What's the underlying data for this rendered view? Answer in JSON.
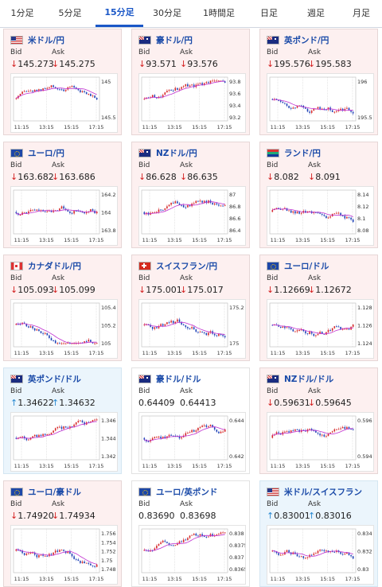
{
  "tabs": [
    "1分足",
    "5分足",
    "15分足",
    "30分足",
    "1時間足",
    "日足",
    "週足",
    "月足"
  ],
  "active_tab": 2,
  "labels": {
    "bid": "Bid",
    "ask": "Ask"
  },
  "time_ticks": [
    "11:15",
    "13:15",
    "15:15",
    "17:15"
  ],
  "cards": [
    {
      "name": "米ドル/円",
      "state": "down",
      "flag": "us",
      "bid": "145.273",
      "ask": "145.275",
      "bid_dir": "down",
      "ask_dir": "down",
      "y_ticks": [
        "145",
        "145.5"
      ]
    },
    {
      "name": "豪ドル/円",
      "state": "down",
      "flag": "au",
      "bid": "93.571",
      "ask": "93.576",
      "bid_dir": "down",
      "ask_dir": "down",
      "y_ticks": [
        "93.8",
        "93.6",
        "93.4",
        "93.2"
      ]
    },
    {
      "name": "英ポンド/円",
      "state": "down",
      "flag": "gb",
      "bid": "195.576",
      "ask": "195.583",
      "bid_dir": "down",
      "ask_dir": "down",
      "y_ticks": [
        "196",
        "195.5"
      ]
    },
    {
      "name": "ユーロ/円",
      "state": "down",
      "flag": "eu",
      "bid": "163.682",
      "ask": "163.686",
      "bid_dir": "down",
      "ask_dir": "down",
      "y_ticks": [
        "164.2",
        "164",
        "163.8"
      ]
    },
    {
      "name": "NZドル/円",
      "state": "down",
      "flag": "nz",
      "bid": "86.628",
      "ask": "86.635",
      "bid_dir": "down",
      "ask_dir": "down",
      "y_ticks": [
        "87",
        "86.8",
        "86.6",
        "86.4"
      ]
    },
    {
      "name": "ランド/円",
      "state": "down",
      "flag": "za",
      "bid": "8.082",
      "ask": "8.091",
      "bid_dir": "down",
      "ask_dir": "down",
      "y_ticks": [
        "8.14",
        "8.12",
        "8.1",
        "8.08"
      ]
    },
    {
      "name": "カナダドル/円",
      "state": "down",
      "flag": "ca",
      "bid": "105.093",
      "ask": "105.099",
      "bid_dir": "down",
      "ask_dir": "down",
      "y_ticks": [
        "105.4",
        "105.2",
        "105"
      ]
    },
    {
      "name": "スイスフラン/円",
      "state": "down",
      "flag": "ch",
      "bid": "175.001",
      "ask": "175.017",
      "bid_dir": "down",
      "ask_dir": "down",
      "y_ticks": [
        "175.2",
        "175"
      ]
    },
    {
      "name": "ユーロ/ドル",
      "state": "down",
      "flag": "eu",
      "bid": "1.12669",
      "ask": "1.12672",
      "bid_dir": "down",
      "ask_dir": "down",
      "y_ticks": [
        "1.128",
        "1.126",
        "1.124"
      ]
    },
    {
      "name": "英ポンド/ドル",
      "state": "up",
      "flag": "gb",
      "bid": "1.34622",
      "ask": "1.34632",
      "bid_dir": "up",
      "ask_dir": "up",
      "y_ticks": [
        "1.346",
        "1.344",
        "1.342"
      ]
    },
    {
      "name": "豪ドル/ドル",
      "state": "flat",
      "flag": "au",
      "bid": "0.64409",
      "ask": "0.64413",
      "bid_dir": "none",
      "ask_dir": "none",
      "y_ticks": [
        "0.644",
        "0.642"
      ]
    },
    {
      "name": "NZドル/ドル",
      "state": "down",
      "flag": "nz",
      "bid": "0.59631",
      "ask": "0.59645",
      "bid_dir": "down",
      "ask_dir": "down",
      "y_ticks": [
        "0.596",
        "0.594"
      ]
    },
    {
      "name": "ユーロ/豪ドル",
      "state": "down",
      "flag": "eu",
      "bid": "1.74920",
      "ask": "1.74934",
      "bid_dir": "down",
      "ask_dir": "down",
      "y_ticks": [
        "1.756",
        "1.754",
        "1.752",
        "1.75",
        "1.748"
      ]
    },
    {
      "name": "ユーロ/英ポンド",
      "state": "flat",
      "flag": "eu",
      "bid": "0.83690",
      "ask": "0.83698",
      "bid_dir": "none",
      "ask_dir": "none",
      "y_ticks": [
        "0.838",
        "0.8375",
        "0.837",
        "0.8365"
      ]
    },
    {
      "name": "米ドル/スイスフラン",
      "state": "up",
      "flag": "us",
      "bid": "0.83001",
      "ask": "0.83016",
      "bid_dir": "up",
      "ask_dir": "up",
      "y_ticks": [
        "0.834",
        "0.832",
        "0.83"
      ]
    }
  ],
  "colors": {
    "candle_up": "#d62828",
    "candle_down": "#2144b8",
    "ma": "#c02fd0",
    "ma2": "#3fbfe0",
    "grid": "#cccccc"
  },
  "arrows": {
    "up": "↑",
    "down": "↓"
  }
}
